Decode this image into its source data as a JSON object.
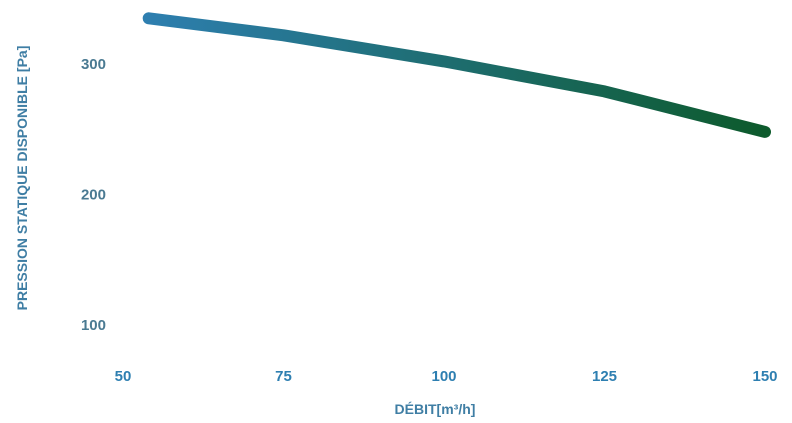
{
  "chart_data": {
    "type": "line",
    "title": "",
    "xlabel": "DÉBIT[m³/h]",
    "ylabel": "PRESSION STATIQUE DISPONIBLE [Pa]",
    "x_ticks": [
      "50",
      "75",
      "100",
      "125",
      "150"
    ],
    "y_ticks": [
      "100",
      "200",
      "300"
    ],
    "xlim": [
      50,
      150
    ],
    "ylim": [
      100,
      300
    ],
    "grid": true,
    "series": [
      {
        "x": [
          54,
          75,
          100,
          125,
          150
        ],
        "y": [
          335,
          322,
          302,
          279,
          248
        ]
      }
    ],
    "colors": {
      "line_start": "#2e7fb1",
      "line_end": "#0d5a2c",
      "x_tick_text": "#2e7fb1",
      "y_tick_text": "#4a7a92",
      "axis_title_text": "#3f7ea4",
      "grid": "#c8c8c8"
    }
  }
}
